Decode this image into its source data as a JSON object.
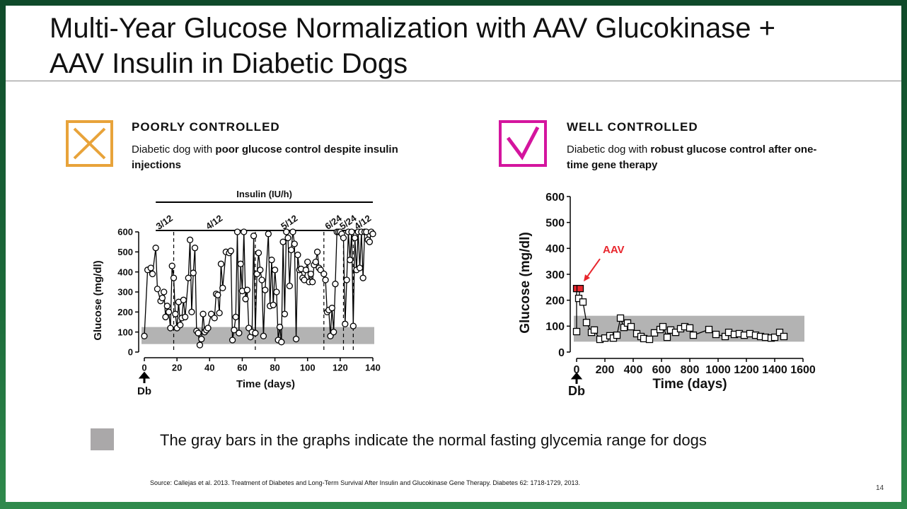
{
  "header": {
    "title_lines": [
      "Multi-Year Glucose Normalization with AAV Glucokinase +",
      "AAV Insulin in Diabetic Dogs"
    ]
  },
  "panels": [
    {
      "heading": "POORLY CONTROLLED",
      "description": "Diabetic dog with ",
      "description_bold": "poor glucose control despite insulin injections"
    },
    {
      "heading": "WELL CONTROLLED",
      "description": "Diabetic dog with ",
      "description_bold": "robust glucose control after one-time gene therapy"
    }
  ],
  "chart_data": [
    {
      "type": "line",
      "x_label": "Time (days)",
      "y_label": "Glucose (mg/dl)",
      "top_label": "Insulin (IU/h)",
      "x_marker_label": "Db",
      "x": [
        0,
        2,
        4,
        5,
        7,
        8,
        10,
        11,
        12,
        13,
        14,
        15,
        16,
        17,
        18,
        19,
        20,
        21,
        22,
        23,
        24,
        25,
        27,
        28,
        29,
        30,
        31,
        32,
        33,
        34,
        35,
        36,
        37,
        38,
        39,
        41,
        43,
        44,
        45,
        46,
        47,
        48,
        50,
        52,
        53,
        54,
        55,
        56,
        57,
        58,
        59,
        60,
        61,
        62,
        63,
        64,
        65,
        66,
        67,
        68,
        69,
        70,
        71,
        72,
        73,
        74,
        76,
        77,
        78,
        79,
        80,
        81,
        82,
        83,
        84,
        85,
        86,
        87,
        88,
        89,
        90,
        91,
        92,
        93,
        94,
        95,
        96,
        97,
        98,
        99,
        100,
        101,
        102,
        103,
        104,
        105,
        106,
        107,
        108,
        110,
        111,
        112,
        113,
        114,
        115,
        116,
        117,
        118,
        119,
        120,
        121,
        122,
        123,
        124,
        125,
        126,
        127,
        128,
        129,
        130,
        131,
        132,
        133,
        134,
        135,
        136,
        137,
        138,
        139,
        140
      ],
      "series": [
        {
          "color": "#000000",
          "marker": "circle",
          "values": [
            80,
            410,
            420,
            390,
            520,
            315,
            255,
            270,
            300,
            175,
            230,
            200,
            120,
            430,
            370,
            190,
            120,
            250,
            135,
            170,
            260,
            175,
            370,
            560,
            200,
            395,
            520,
            105,
            95,
            35,
            65,
            190,
            100,
            110,
            120,
            190,
            170,
            290,
            285,
            195,
            440,
            320,
            500,
            495,
            505,
            60,
            110,
            175,
            600,
            95,
            440,
            305,
            600,
            265,
            310,
            120,
            75,
            100,
            580,
            95,
            390,
            495,
            410,
            360,
            80,
            310,
            590,
            230,
            460,
            235,
            410,
            300,
            60,
            125,
            50,
            550,
            190,
            600,
            570,
            330,
            510,
            600,
            540,
            65,
            485,
            410,
            415,
            370,
            360,
            410,
            450,
            350,
            390,
            350,
            435,
            450,
            500,
            420,
            410,
            390,
            360,
            200,
            210,
            80,
            220,
            100,
            340,
            600,
            600,
            600,
            590,
            570,
            140,
            360,
            600,
            460,
            600,
            130,
            570,
            410,
            600,
            420,
            600,
            370,
            600,
            600,
            560,
            550,
            600,
            590
          ]
        }
      ],
      "xlim": [
        0,
        140
      ],
      "ylim": [
        0,
        600
      ],
      "xticks": [
        0,
        20,
        40,
        60,
        80,
        100,
        120,
        140
      ],
      "yticks": [
        0,
        100,
        200,
        300,
        400,
        500,
        600
      ],
      "normal_range": [
        40,
        125
      ],
      "normal_range_color": "#b3b3b3",
      "insulin_start": 7,
      "dose_changes": [
        18,
        68,
        110,
        122,
        128
      ],
      "dose_labels": [
        "3/12",
        "4/12",
        "5/12",
        "6/24",
        "5/24",
        "4/12"
      ]
    },
    {
      "type": "line",
      "x_label": "Time (days)",
      "y_label": "Glucose (mg/dl)",
      "x_marker_label": "Db",
      "annotation": "AAV",
      "annotation_color": "#e8262d",
      "x": [
        0,
        0,
        25,
        15,
        45,
        70,
        105,
        125,
        165,
        200,
        235,
        260,
        285,
        310,
        335,
        360,
        385,
        425,
        455,
        475,
        515,
        550,
        590,
        610,
        640,
        665,
        700,
        735,
        765,
        800,
        825,
        935,
        985,
        1050,
        1075,
        1115,
        1150,
        1185,
        1225,
        1265,
        1300,
        1335,
        1375,
        1400,
        1435,
        1465
      ],
      "series": [
        {
          "color": "#000000",
          "marker": "square",
          "point_fills": [
            "#ffffff",
            "#e8262d",
            "#e8262d",
            "#ffffff",
            "#ffffff",
            "#ffffff",
            "#ffffff",
            "#ffffff",
            "#ffffff",
            "#ffffff",
            "#ffffff",
            "#ffffff",
            "#ffffff",
            "#ffffff",
            "#ffffff",
            "#ffffff",
            "#ffffff",
            "#ffffff",
            "#ffffff",
            "#ffffff",
            "#ffffff",
            "#ffffff",
            "#ffffff",
            "#ffffff",
            "#ffffff",
            "#ffffff",
            "#ffffff",
            "#ffffff",
            "#ffffff",
            "#ffffff",
            "#ffffff",
            "#ffffff",
            "#ffffff",
            "#ffffff",
            "#ffffff",
            "#ffffff",
            "#ffffff",
            "#ffffff",
            "#ffffff",
            "#ffffff",
            "#ffffff",
            "#ffffff",
            "#ffffff",
            "#ffffff",
            "#ffffff",
            "#ffffff"
          ],
          "values": [
            79,
            245,
            245,
            207,
            193,
            114,
            76,
            85,
            49,
            54,
            63,
            54,
            65,
            131,
            95,
            112,
            98,
            71,
            60,
            52,
            49,
            74,
            87,
            98,
            57,
            85,
            76,
            90,
            98,
            93,
            65,
            87,
            68,
            60,
            76,
            68,
            71,
            65,
            71,
            65,
            60,
            57,
            54,
            57,
            76,
            60
          ]
        }
      ],
      "xlim": [
        0,
        1600
      ],
      "ylim": [
        0,
        600
      ],
      "xticks": [
        0,
        200,
        400,
        600,
        800,
        1000,
        1200,
        1400,
        1600
      ],
      "yticks": [
        0,
        100,
        200,
        300,
        400,
        500,
        600
      ],
      "normal_range": [
        40,
        140
      ],
      "normal_range_color": "#b3b3b3"
    }
  ],
  "legend_note": {
    "color": "#aaa8a9",
    "text": "The gray bars in the graphs indicate the normal fasting glycemia range for dogs"
  },
  "source": "Source: Callejas et al. 2013. Treatment of Diabetes and Long-Term Survival After Insulin and Glucokinase Gene Therapy. Diabetes 62: 1718-1729, 2013.",
  "page_number": "14"
}
